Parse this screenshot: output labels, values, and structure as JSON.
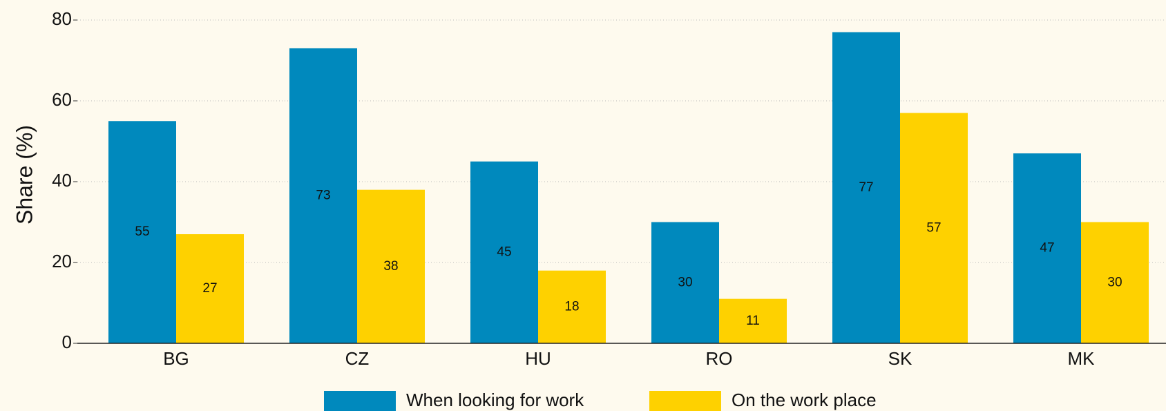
{
  "chart_data": {
    "type": "bar",
    "y_label": "Share (%)",
    "categories": [
      "BG",
      "CZ",
      "HU",
      "RO",
      "SK",
      "MK"
    ],
    "series": [
      {
        "name": "When looking for work",
        "color": "#0089bd",
        "values": [
          55,
          73,
          45,
          30,
          77,
          47
        ]
      },
      {
        "name": "On the work place",
        "color": "#fed100",
        "values": [
          27,
          38,
          18,
          11,
          57,
          30
        ]
      }
    ],
    "ylim": [
      0,
      80
    ],
    "yticks": [
      0,
      20,
      40,
      60,
      80
    ],
    "grid": true,
    "legend": "bottom"
  }
}
